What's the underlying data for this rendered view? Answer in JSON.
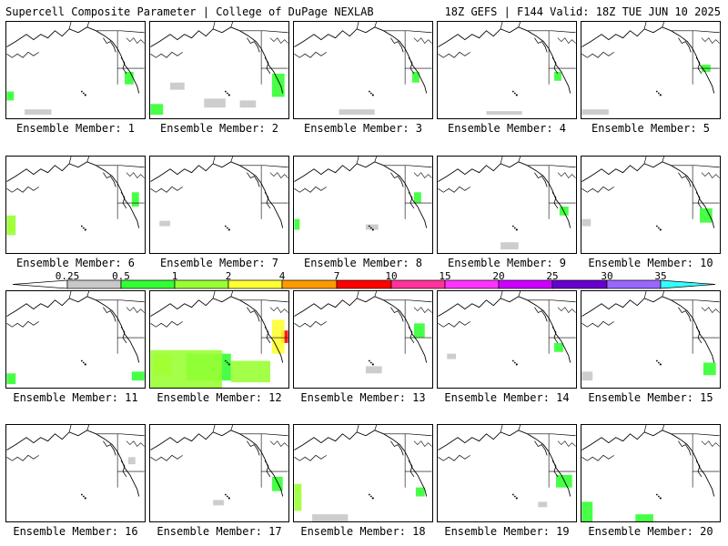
{
  "header": {
    "left": "Supercell Composite Parameter | College of DuPage NEXLAB",
    "right": "18Z GEFS | F144 Valid: 18Z TUE JUN 10 2025"
  },
  "colorbar": {
    "ticks": [
      "0.25",
      "0.5",
      "1",
      "2",
      "4",
      "7",
      "10",
      "15",
      "20",
      "25",
      "30",
      "35"
    ],
    "colors": [
      "#ffffff",
      "#c8c8c8",
      "#33ff33",
      "#99ff33",
      "#ffff33",
      "#ff9900",
      "#ff0000",
      "#ff3399",
      "#ff33ff",
      "#cc00ff",
      "#6600cc",
      "#9966ff",
      "#33ffff"
    ]
  },
  "panels": [
    {
      "label": "Ensemble Member: 1"
    },
    {
      "label": "Ensemble Member: 2"
    },
    {
      "label": "Ensemble Member: 3"
    },
    {
      "label": "Ensemble Member: 4"
    },
    {
      "label": "Ensemble Member: 5"
    },
    {
      "label": "Ensemble Member: 6"
    },
    {
      "label": "Ensemble Member: 7"
    },
    {
      "label": "Ensemble Member: 8"
    },
    {
      "label": "Ensemble Member: 9"
    },
    {
      "label": "Ensemble Member: 10"
    },
    {
      "label": "Ensemble Member: 11"
    },
    {
      "label": "Ensemble Member: 12"
    },
    {
      "label": "Ensemble Member: 13"
    },
    {
      "label": "Ensemble Member: 14"
    },
    {
      "label": "Ensemble Member: 15"
    },
    {
      "label": "Ensemble Member: 16"
    },
    {
      "label": "Ensemble Member: 17"
    },
    {
      "label": "Ensemble Member: 18"
    },
    {
      "label": "Ensemble Member: 19"
    },
    {
      "label": "Ensemble Member: 20"
    }
  ]
}
